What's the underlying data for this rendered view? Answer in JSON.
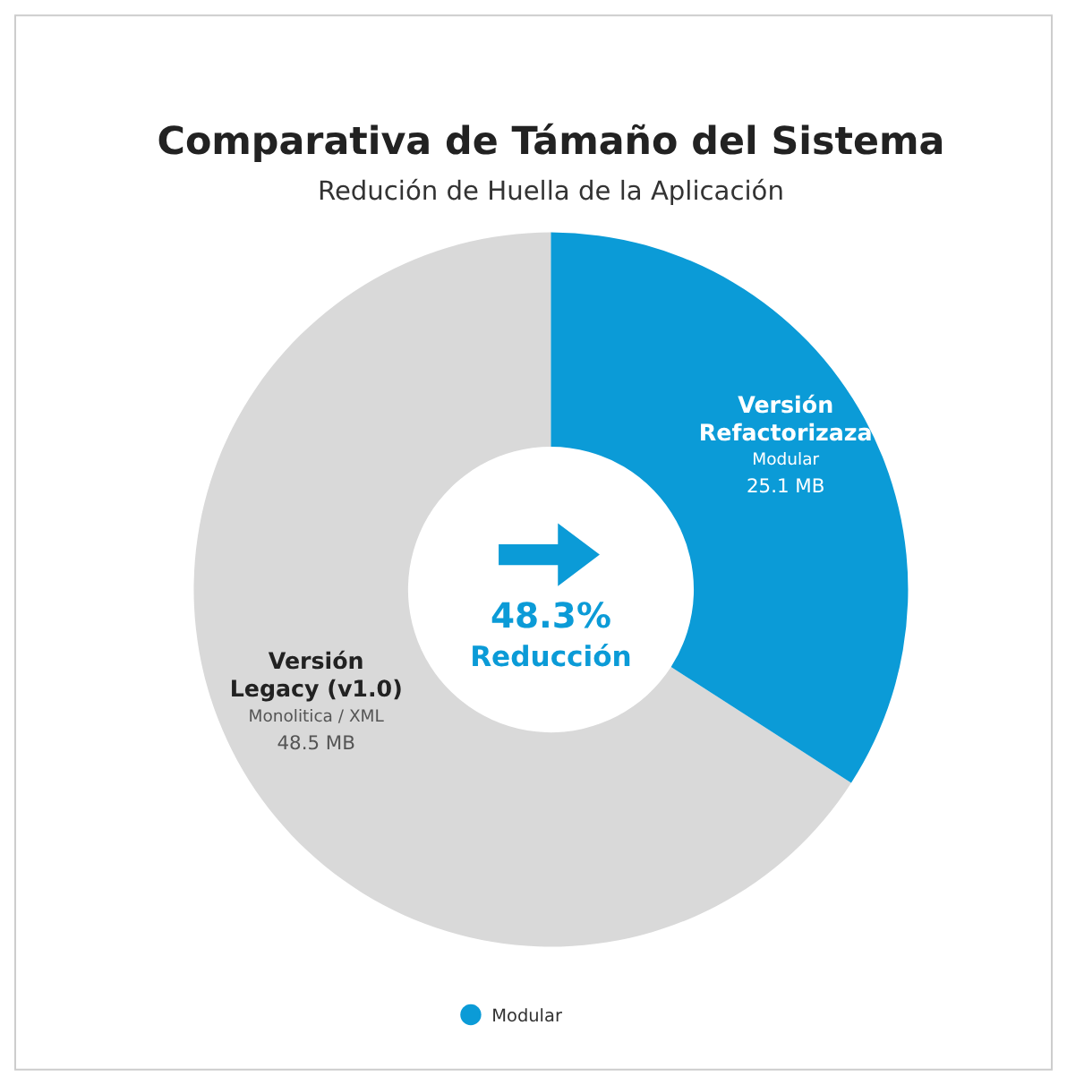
{
  "chart_data": {
    "type": "donut",
    "title": "Comparativa de Támaño del Sistema",
    "subtitle": "Redución de Huella de la Aplicación",
    "categories": [
      "Versión Legacy (v1.0)",
      "Versión Refactorizaza"
    ],
    "values": [
      48.5,
      25.1
    ],
    "colors": [
      "#d9d9d9",
      "#0b9bd7"
    ],
    "value_labels": [
      "48.5 MB",
      "25.1 MB"
    ],
    "annotations": [
      "Monolitica / XML",
      "Modular",
      "48.3% Reducción",
      "Modular"
    ]
  }
}
